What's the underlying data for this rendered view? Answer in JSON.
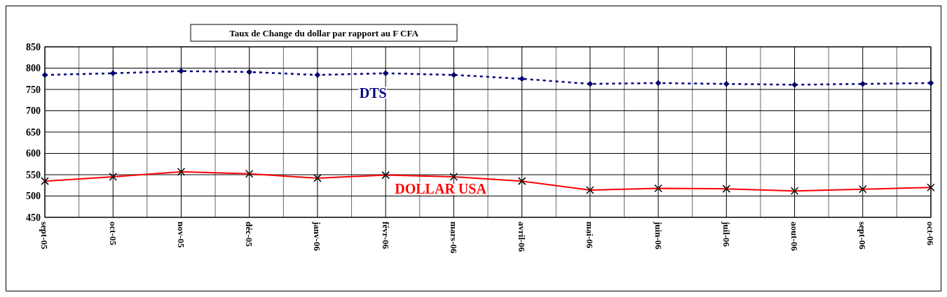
{
  "chart_data": {
    "type": "line",
    "title": "Taux de Change du dollar par rapport au F CFA",
    "categories": [
      "sept-05",
      "oct-05",
      "nov-05",
      "déc-05",
      "janv-06",
      "févr-06",
      "mars-06",
      "avril-06",
      "mai-06",
      "juin-06",
      "juil-06",
      "aout-06",
      "sept-06",
      "oct-06"
    ],
    "series": [
      {
        "name": "DTS",
        "color": "#000080",
        "marker": "diamond",
        "line_style": "dotted",
        "values": [
          784,
          788,
          793,
          791,
          784,
          788,
          784,
          775,
          763,
          765,
          763,
          761,
          763,
          765
        ]
      },
      {
        "name": "DOLLAR USA",
        "color": "#ff0000",
        "marker": "cross",
        "line_style": "solid",
        "values": [
          535,
          545,
          557,
          552,
          542,
          549,
          545,
          535,
          514,
          518,
          517,
          512,
          516,
          520
        ]
      }
    ],
    "ylim": [
      450,
      850
    ],
    "yticks": [
      450,
      500,
      550,
      600,
      650,
      700,
      750,
      800,
      850
    ],
    "grid": true
  }
}
